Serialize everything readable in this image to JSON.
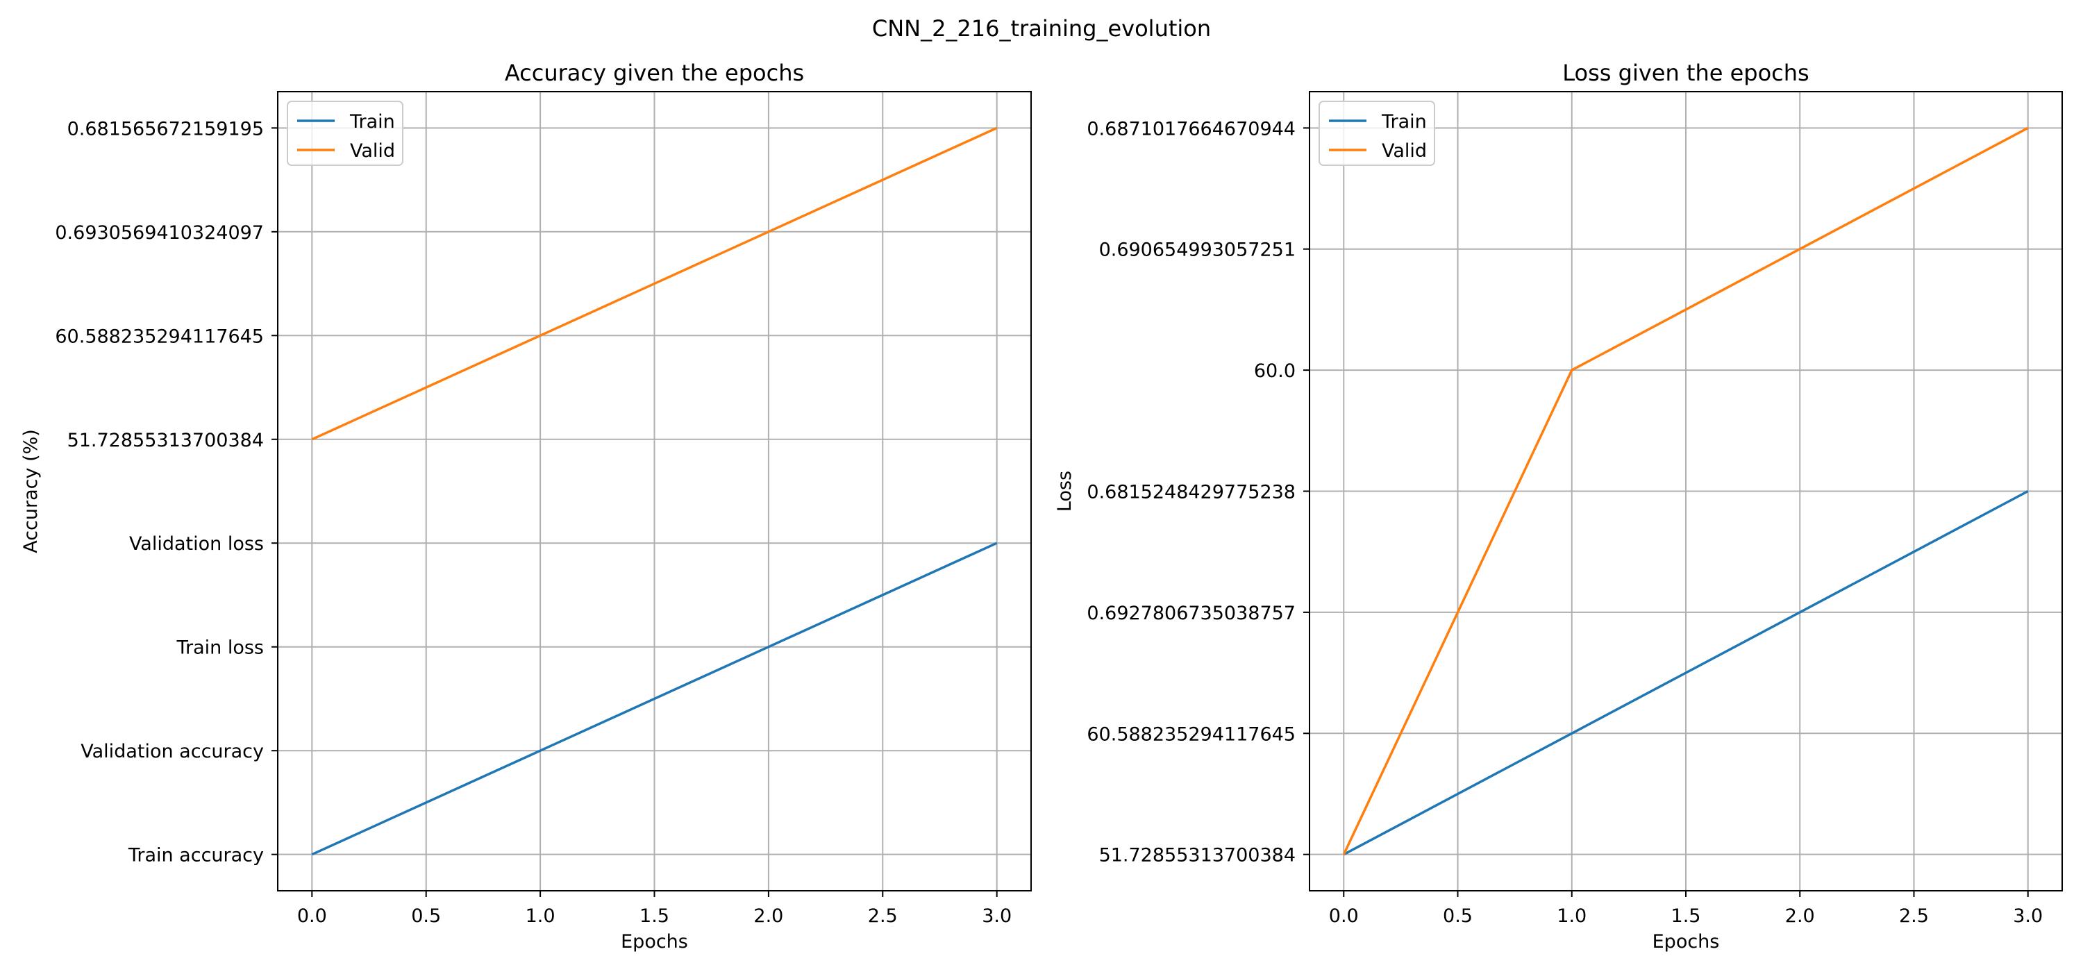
{
  "figure": {
    "title": "CNN_2_216_training_evolution"
  },
  "chart_data": [
    {
      "type": "line",
      "title": "Accuracy given the epochs",
      "xlabel": "Epochs",
      "ylabel": "Accuracy (%)",
      "x_ticks": [
        "0.0",
        "0.5",
        "1.0",
        "1.5",
        "2.0",
        "2.5",
        "3.0"
      ],
      "x_tick_values": [
        0,
        0.5,
        1,
        1.5,
        2,
        2.5,
        3
      ],
      "xlim": [
        -0.15,
        3.15
      ],
      "y_categories": [
        "Train accuracy",
        "Validation accuracy",
        "Train loss",
        "Validation loss",
        "51.72855313700384",
        "60.588235294117645",
        "0.6930569410324097",
        "0.681565672159195"
      ],
      "ylim": [
        -0.35,
        7.35
      ],
      "grid": true,
      "legend_position": "top-left",
      "series": [
        {
          "name": "Train",
          "color": "#1f77b4",
          "x": [
            0,
            1,
            2,
            3
          ],
          "y": [
            0,
            1,
            2,
            3
          ]
        },
        {
          "name": "Valid",
          "color": "#ff7f0e",
          "x": [
            0,
            1,
            2,
            3
          ],
          "y": [
            4,
            5,
            6,
            7
          ]
        }
      ]
    },
    {
      "type": "line",
      "title": "Loss given the epochs",
      "xlabel": "Epochs",
      "ylabel": "Loss",
      "x_ticks": [
        "0.0",
        "0.5",
        "1.0",
        "1.5",
        "2.0",
        "2.5",
        "3.0"
      ],
      "x_tick_values": [
        0,
        0.5,
        1,
        1.5,
        2,
        2.5,
        3
      ],
      "xlim": [
        -0.15,
        3.15
      ],
      "y_categories": [
        "51.72855313700384",
        "60.588235294117645",
        "0.6927806735038757",
        "0.6815248429775238",
        "60.0",
        "0.690654993057251",
        "0.6871017664670944"
      ],
      "ylim": [
        -0.3,
        6.3
      ],
      "grid": true,
      "legend_position": "top-left",
      "series": [
        {
          "name": "Train",
          "color": "#1f77b4",
          "x": [
            0,
            1,
            2,
            3
          ],
          "y": [
            0,
            1,
            2,
            3
          ]
        },
        {
          "name": "Valid",
          "color": "#ff7f0e",
          "x": [
            0,
            1,
            2,
            3
          ],
          "y": [
            0,
            4,
            5,
            6
          ]
        }
      ]
    }
  ]
}
